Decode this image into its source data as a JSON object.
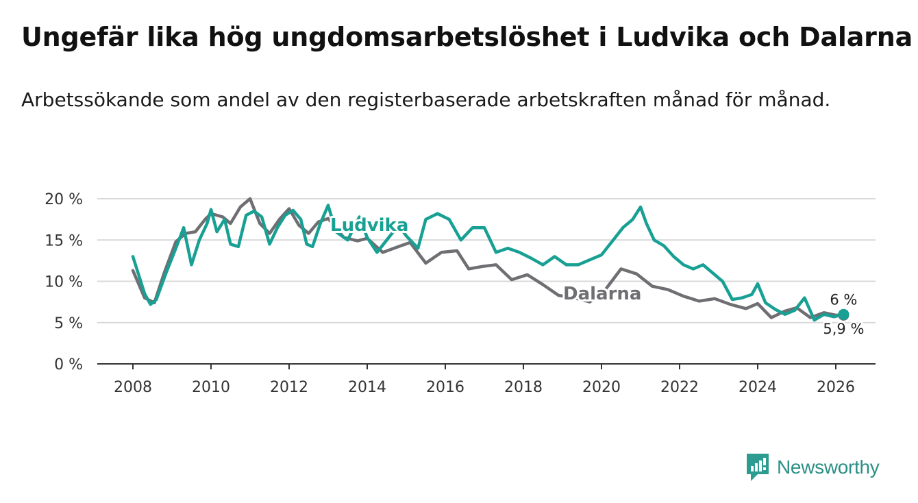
{
  "header": {
    "title": "Ungefär lika hög ungdomsarbetslöshet i Ludvika och Dalarna",
    "subtitle": "Arbetssökande som andel av den registerbaserade arbetskraften månad för månad."
  },
  "brand": {
    "name": "Newsworthy",
    "color": "#2b9c8f"
  },
  "chart_data": {
    "type": "line",
    "title": "Ungefär lika hög ungdomsarbetslöshet i Ludvika och Dalarna",
    "xlabel": "",
    "ylabel": "",
    "xlim": [
      2007.5,
      2027.1
    ],
    "ylim": [
      0,
      20
    ],
    "grid": true,
    "x_ticks": [
      2008,
      2010,
      2012,
      2014,
      2016,
      2018,
      2020,
      2022,
      2024,
      2026
    ],
    "x_tick_labels": [
      "2008",
      "2010",
      "2012",
      "2014",
      "2016",
      "2018",
      "2020",
      "2022",
      "2024",
      "2026"
    ],
    "y_ticks": [
      0,
      5,
      10,
      15,
      20
    ],
    "y_tick_labels": [
      "0 %",
      "5 %",
      "10 %",
      "15 %",
      "20 %"
    ],
    "series": [
      {
        "name": "Dalarna",
        "label": "Dalarna",
        "color": "#6e6e73",
        "end_label": "5,9 %",
        "x": [
          2008.0,
          2008.3,
          2008.55,
          2008.8,
          2009.1,
          2009.35,
          2009.6,
          2009.85,
          2010.0,
          2010.3,
          2010.5,
          2010.75,
          2011.0,
          2011.25,
          2011.5,
          2011.75,
          2012.0,
          2012.25,
          2012.5,
          2012.75,
          2013.0,
          2013.4,
          2013.75,
          2014.0,
          2014.4,
          2014.8,
          2015.1,
          2015.5,
          2015.9,
          2016.3,
          2016.6,
          2016.95,
          2017.3,
          2017.7,
          2018.1,
          2018.5,
          2018.9,
          2019.3,
          2019.7,
          2020.1,
          2020.5,
          2020.9,
          2021.3,
          2021.7,
          2022.1,
          2022.5,
          2022.9,
          2023.3,
          2023.7,
          2024.0,
          2024.35,
          2024.7,
          2025.0,
          2025.35,
          2025.7,
          2026.0,
          2026.2
        ],
        "y": [
          11.3,
          8.0,
          7.4,
          11.0,
          14.8,
          15.8,
          16.0,
          17.5,
          18.2,
          17.8,
          17.0,
          19.0,
          20.0,
          17.0,
          15.8,
          17.5,
          18.8,
          16.8,
          15.8,
          17.2,
          17.6,
          15.3,
          14.9,
          15.2,
          13.5,
          14.2,
          14.7,
          12.2,
          13.5,
          13.7,
          11.5,
          11.8,
          12.0,
          10.2,
          10.8,
          9.6,
          8.3,
          8.0,
          7.5,
          9.0,
          11.5,
          10.9,
          9.4,
          9.0,
          8.2,
          7.6,
          7.9,
          7.2,
          6.7,
          7.3,
          5.6,
          6.4,
          6.8,
          5.6,
          6.2,
          5.9,
          5.9
        ]
      },
      {
        "name": "Ludvika",
        "label": "Ludvika",
        "color": "#17a093",
        "end_label": "6 %",
        "x": [
          2008.0,
          2008.3,
          2008.45,
          2008.6,
          2008.85,
          2009.1,
          2009.3,
          2009.5,
          2009.7,
          2009.9,
          2010.0,
          2010.15,
          2010.35,
          2010.5,
          2010.7,
          2010.9,
          2011.1,
          2011.3,
          2011.5,
          2011.7,
          2011.9,
          2012.1,
          2012.3,
          2012.45,
          2012.6,
          2012.8,
          2013.0,
          2013.2,
          2013.5,
          2013.8,
          2014.0,
          2014.25,
          2014.5,
          2014.8,
          2015.0,
          2015.3,
          2015.5,
          2015.8,
          2016.1,
          2016.4,
          2016.7,
          2017.0,
          2017.3,
          2017.6,
          2017.9,
          2018.2,
          2018.5,
          2018.8,
          2019.1,
          2019.4,
          2019.7,
          2020.0,
          2020.3,
          2020.55,
          2020.8,
          2021.0,
          2021.15,
          2021.35,
          2021.6,
          2021.85,
          2022.1,
          2022.35,
          2022.6,
          2022.85,
          2023.1,
          2023.35,
          2023.6,
          2023.85,
          2024.0,
          2024.2,
          2024.45,
          2024.7,
          2024.95,
          2025.2,
          2025.45,
          2025.7,
          2025.95,
          2026.2
        ],
        "y": [
          13.0,
          8.5,
          7.2,
          7.8,
          11.0,
          14.0,
          16.5,
          12.0,
          15.0,
          17.0,
          18.7,
          16.0,
          17.5,
          14.5,
          14.2,
          18.0,
          18.5,
          17.8,
          14.5,
          16.5,
          18.0,
          18.6,
          17.5,
          14.5,
          14.2,
          17.0,
          19.2,
          16.0,
          15.0,
          17.8,
          15.3,
          13.5,
          15.0,
          16.8,
          15.5,
          14.0,
          17.5,
          18.2,
          17.5,
          15.0,
          16.5,
          16.5,
          13.5,
          14.0,
          13.5,
          12.8,
          12.0,
          13.0,
          12.0,
          12.0,
          12.6,
          13.2,
          15.0,
          16.5,
          17.5,
          19.0,
          17.0,
          15.0,
          14.3,
          13.0,
          12.0,
          11.5,
          12.0,
          11.0,
          10.0,
          7.8,
          8.0,
          8.4,
          9.7,
          7.4,
          6.6,
          6.0,
          6.5,
          8.0,
          5.3,
          6.0,
          5.7,
          6.0
        ]
      }
    ]
  }
}
